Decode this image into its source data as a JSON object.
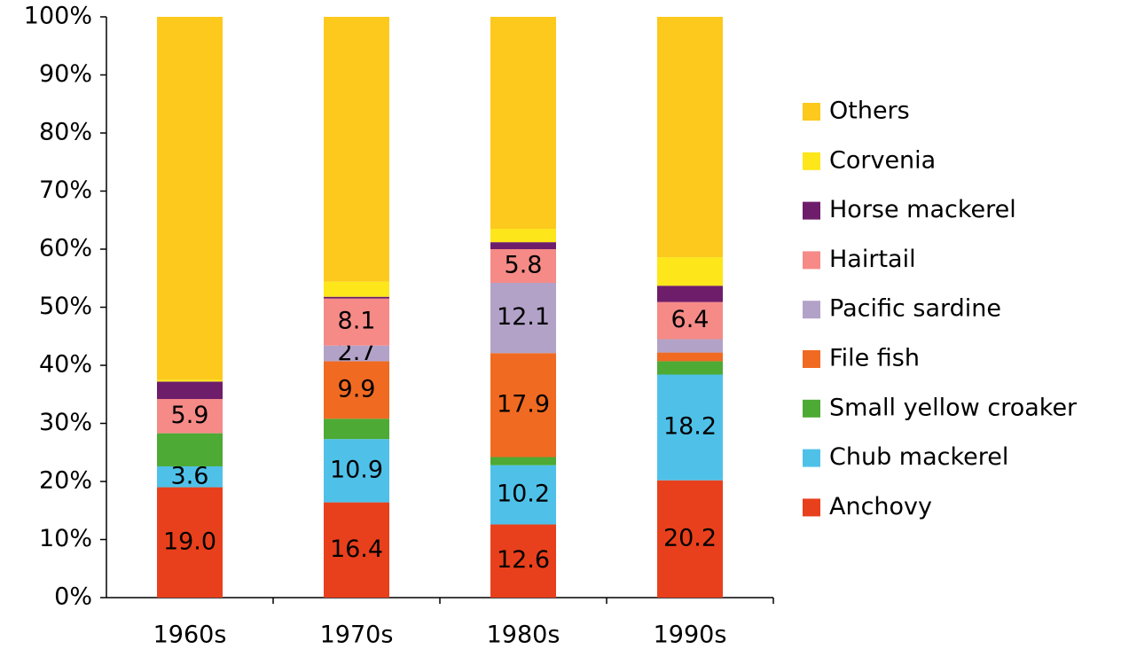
{
  "chart_data": {
    "type": "stacked_bar",
    "categories": [
      "1960s",
      "1970s",
      "1980s",
      "1990s"
    ],
    "ylim": [
      0,
      100
    ],
    "yticks": [
      {
        "value": 0,
        "label": "0%"
      },
      {
        "value": 10,
        "label": "10%"
      },
      {
        "value": 20,
        "label": "20%"
      },
      {
        "value": 30,
        "label": "30%"
      },
      {
        "value": 40,
        "label": "40%"
      },
      {
        "value": 50,
        "label": "50%"
      },
      {
        "value": 60,
        "label": "60%"
      },
      {
        "value": 70,
        "label": "70%"
      },
      {
        "value": 80,
        "label": "80%"
      },
      {
        "value": 90,
        "label": "90%"
      },
      {
        "value": 100,
        "label": "100%"
      }
    ],
    "legend": "right",
    "series": [
      {
        "name": "Anchovy",
        "color": "#e8401c",
        "values": [
          19.0,
          16.4,
          12.6,
          20.2
        ],
        "value_labels": [
          "19.0",
          "16.4",
          "12.6",
          "20.2"
        ]
      },
      {
        "name": "Chub mackerel",
        "color": "#4fc1e9",
        "values": [
          3.6,
          10.9,
          10.2,
          18.2
        ]
      },
      {
        "name": "Small yellow croaker",
        "color": "#4caa35",
        "values": [
          5.7,
          3.5,
          1.4,
          2.3
        ]
      },
      {
        "name": "File fish",
        "color": "#f06a22",
        "values": [
          0,
          9.9,
          17.9,
          1.5
        ],
        "value_labels": [
          null,
          "9.9",
          "17.9",
          null
        ]
      },
      {
        "name": "Pacific sardine",
        "color": "#b3a2c8",
        "values": [
          0,
          2.7,
          12.1,
          2.3
        ],
        "value_labels": [
          null,
          "2.7",
          "12.1",
          null
        ]
      },
      {
        "name": "Hairtail",
        "color": "#f58a87",
        "values": [
          5.9,
          8.1,
          5.8,
          6.4
        ]
      },
      {
        "name": "Horse mackerel",
        "color": "#6e1d6b",
        "values": [
          3.0,
          0.3,
          1.2,
          2.8
        ]
      },
      {
        "name": "Corvenia",
        "color": "#fde619",
        "values": [
          0.3,
          2.6,
          2.3,
          4.9
        ]
      },
      {
        "name": "Others",
        "color": "#fcc91c",
        "values": [
          62.5,
          45.6,
          36.5,
          41.4
        ]
      }
    ],
    "labeled_series": [
      0,
      1,
      3,
      4,
      5
    ]
  }
}
